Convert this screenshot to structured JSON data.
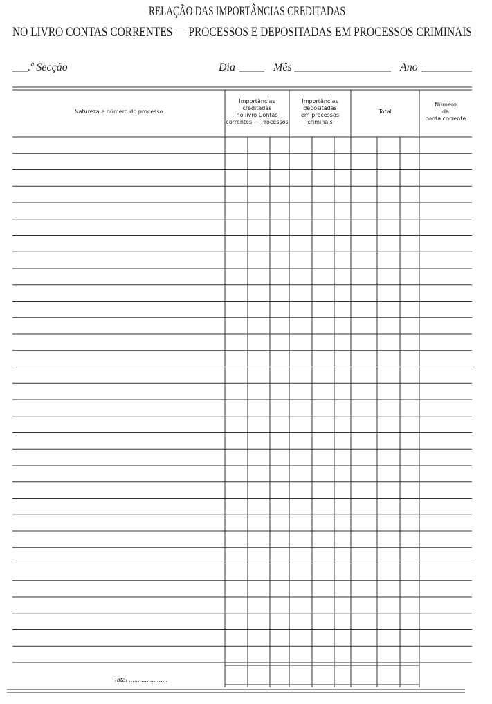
{
  "header": {
    "title": [
      "RELAÇÃO DAS IMPORTÂNCIAS CREDITADAS",
      "NO LIVRO CONTAS CORRENTES — PROCESSOS E DEPOSITADAS EM PROCESSOS CRIMINAIS"
    ]
  },
  "fields": {
    "section": ".ª Secção",
    "day": "Dia",
    "month": "Mês",
    "year": "Ano"
  },
  "table": {
    "columns": [
      {
        "lines": [
          "Natureza e número do processo"
        ]
      },
      {
        "lines": [
          "Importâncias",
          "creditadas",
          "no livro Contas",
          "correntes — Processos"
        ]
      },
      {
        "lines": [
          "Importâncias",
          "depositadas",
          "em processos",
          "criminais"
        ]
      },
      {
        "lines": [
          "Total"
        ]
      },
      {
        "lines": [
          "Número",
          "da",
          "conta corrente"
        ]
      }
    ],
    "total_label": "Total ......................"
  }
}
